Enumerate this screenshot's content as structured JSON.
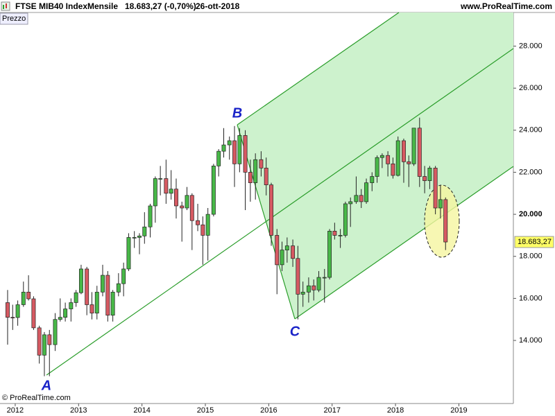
{
  "header": {
    "instrument": "FTSE MIB40 Index",
    "period": "Mensile",
    "price": "18.683,27 (-0,70%)",
    "date": "26-ott-2018",
    "site": "www.ProRealTime.com"
  },
  "panel_label": "Prezzo",
  "copyright": "© ProRealTime.com",
  "chart_data": {
    "type": "candlestick",
    "annotations": [
      "A",
      "B",
      "C"
    ],
    "last_price_label": "18.683,27",
    "up_color": "#48b848",
    "down_color": "#d65a62",
    "xlim": [
      2011.76,
      2019.86
    ],
    "xticks": [
      2012,
      2013,
      2014,
      2015,
      2016,
      2017,
      2018,
      2019
    ],
    "ylim": [
      11000,
      29600
    ],
    "yticks": [
      {
        "value": 14000,
        "label": "14.000"
      },
      {
        "value": 16000,
        "label": "16.000"
      },
      {
        "value": 18000,
        "label": "18.000"
      },
      {
        "value": 20000,
        "label": "20.000"
      },
      {
        "value": 22000,
        "label": "22.000"
      },
      {
        "value": 24000,
        "label": "24.000"
      },
      {
        "value": 26000,
        "label": "26.000"
      },
      {
        "value": 28000,
        "label": "28.000"
      }
    ],
    "x": [
      2011.88,
      2011.96,
      2012.04,
      2012.13,
      2012.21,
      2012.29,
      2012.38,
      2012.46,
      2012.54,
      2012.63,
      2012.71,
      2012.79,
      2012.88,
      2012.96,
      2013.04,
      2013.13,
      2013.21,
      2013.29,
      2013.38,
      2013.46,
      2013.54,
      2013.63,
      2013.71,
      2013.79,
      2013.88,
      2013.96,
      2014.04,
      2014.13,
      2014.21,
      2014.29,
      2014.38,
      2014.46,
      2014.54,
      2014.63,
      2014.71,
      2014.79,
      2014.88,
      2014.96,
      2015.04,
      2015.13,
      2015.21,
      2015.29,
      2015.38,
      2015.46,
      2015.54,
      2015.63,
      2015.71,
      2015.79,
      2015.88,
      2015.96,
      2016.04,
      2016.13,
      2016.21,
      2016.29,
      2016.38,
      2016.46,
      2016.54,
      2016.63,
      2016.71,
      2016.79,
      2016.88,
      2016.96,
      2017.04,
      2017.13,
      2017.21,
      2017.29,
      2017.38,
      2017.46,
      2017.54,
      2017.63,
      2017.71,
      2017.79,
      2017.88,
      2017.96,
      2018.04,
      2018.13,
      2018.21,
      2018.29,
      2018.38,
      2018.46,
      2018.54,
      2018.63,
      2018.71,
      2018.79
    ],
    "open": [
      15800,
      15100,
      15090,
      15700,
      16300,
      15980,
      14600,
      13300,
      14270,
      13800,
      15000,
      15100,
      15500,
      15800,
      16270,
      17400,
      15700,
      15300,
      16300,
      17100,
      15200,
      16300,
      16700,
      17400,
      18900,
      18900,
      18970,
      19400,
      20400,
      21700,
      21700,
      21000,
      21200,
      20400,
      20300,
      20900,
      19700,
      19500,
      19000,
      20000,
      22300,
      23000,
      23300,
      23500,
      22400,
      23750,
      22000,
      21500,
      22600,
      22200,
      21400,
      19000,
      17600,
      18300,
      18500,
      17900,
      16200,
      16300,
      16600,
      16400,
      17000,
      17000,
      19200,
      19000,
      19000,
      20500,
      20600,
      20900,
      20600,
      21500,
      21800,
      22700,
      22800,
      22400,
      21850,
      23500,
      22500,
      22400,
      24100,
      21800,
      21600,
      22200,
      20300,
      20700
    ],
    "high": [
      16400,
      15700,
      15900,
      16800,
      17100,
      16100,
      14700,
      14400,
      14500,
      15300,
      16000,
      15800,
      16000,
      16400,
      17600,
      17500,
      16300,
      16600,
      17600,
      17300,
      16400,
      17200,
      17700,
      19100,
      19200,
      19100,
      20100,
      20500,
      21800,
      22300,
      22600,
      22100,
      21700,
      20600,
      21300,
      21000,
      20500,
      19900,
      20300,
      22400,
      23100,
      24100,
      23700,
      24200,
      24100,
      24000,
      22600,
      22900,
      23000,
      22700,
      21500,
      19300,
      18700,
      18900,
      18800,
      18500,
      16800,
      17000,
      16900,
      17300,
      17400,
      19300,
      19600,
      19300,
      20600,
      20800,
      21800,
      21200,
      21700,
      22000,
      22800,
      22900,
      23000,
      22700,
      23700,
      23600,
      22800,
      24100,
      24600,
      22300,
      22300,
      22300,
      21400,
      20800
    ],
    "low": [
      13800,
      14500,
      14700,
      15600,
      15900,
      14500,
      12900,
      12300,
      12300,
      13500,
      14900,
      14900,
      14900,
      15600,
      16200,
      15200,
      15000,
      15000,
      16100,
      14900,
      14900,
      16100,
      16100,
      17300,
      18400,
      18100,
      18600,
      18900,
      19600,
      20900,
      20500,
      20700,
      19800,
      18700,
      20200,
      18300,
      19200,
      17600,
      17800,
      19900,
      21800,
      22700,
      22600,
      21300,
      22000,
      20200,
      20600,
      20700,
      21800,
      20900,
      18500,
      16200,
      17300,
      17700,
      17500,
      15000,
      15600,
      15800,
      15900,
      16300,
      15800,
      16900,
      18800,
      18400,
      18900,
      19400,
      20500,
      20300,
      20500,
      21100,
      21500,
      22200,
      21800,
      21700,
      21800,
      21500,
      21300,
      22300,
      21300,
      21000,
      21200,
      20000,
      19800,
      18300
    ],
    "close": [
      15100,
      15090,
      15700,
      16300,
      15980,
      14600,
      13300,
      14270,
      13800,
      15000,
      15100,
      15500,
      15800,
      16270,
      17400,
      15700,
      15300,
      16300,
      17100,
      15200,
      16300,
      16700,
      17400,
      18900,
      18900,
      18970,
      19400,
      20400,
      21700,
      21700,
      21000,
      21200,
      20400,
      20300,
      20900,
      19700,
      19500,
      19000,
      20000,
      22300,
      23000,
      23300,
      23500,
      22400,
      23750,
      22000,
      21500,
      22600,
      22200,
      21400,
      19000,
      17600,
      18300,
      18500,
      17900,
      16200,
      16300,
      16600,
      16400,
      17000,
      17000,
      19200,
      19000,
      19000,
      20500,
      20600,
      20900,
      20600,
      21500,
      21800,
      22700,
      22800,
      22400,
      21850,
      23500,
      22500,
      22400,
      24100,
      21800,
      21600,
      22200,
      20300,
      20700,
      18683
    ]
  }
}
